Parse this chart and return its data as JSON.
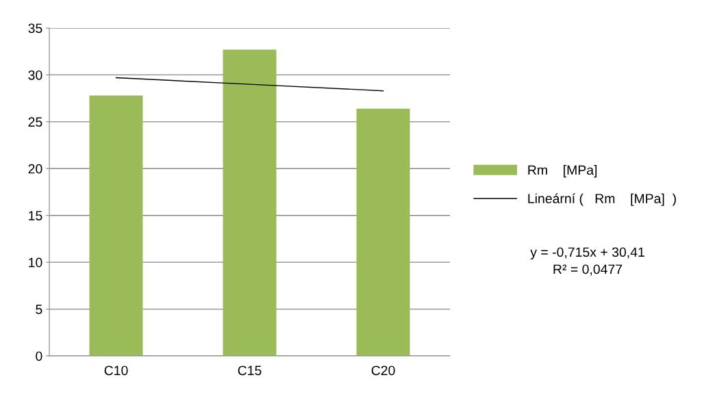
{
  "chart_data": {
    "type": "bar",
    "categories": [
      "C10",
      "C15",
      "C20"
    ],
    "series": [
      {
        "name": "Rm    [MPa]",
        "color": "#9bbb59",
        "values": [
          27.8,
          32.7,
          26.4
        ]
      },
      {
        "name": "Lineární (   Rm    [MPa]  )",
        "type": "line",
        "color": "#000000",
        "values": [
          29.7,
          29.0,
          28.3
        ]
      }
    ],
    "ylim": [
      0,
      35
    ],
    "yticks": [
      0,
      5,
      10,
      15,
      20,
      25,
      30,
      35
    ],
    "grid": "y",
    "legend": "right",
    "annotations": [
      "y = -0,715x + 30,41",
      "R² = 0,0477"
    ]
  }
}
